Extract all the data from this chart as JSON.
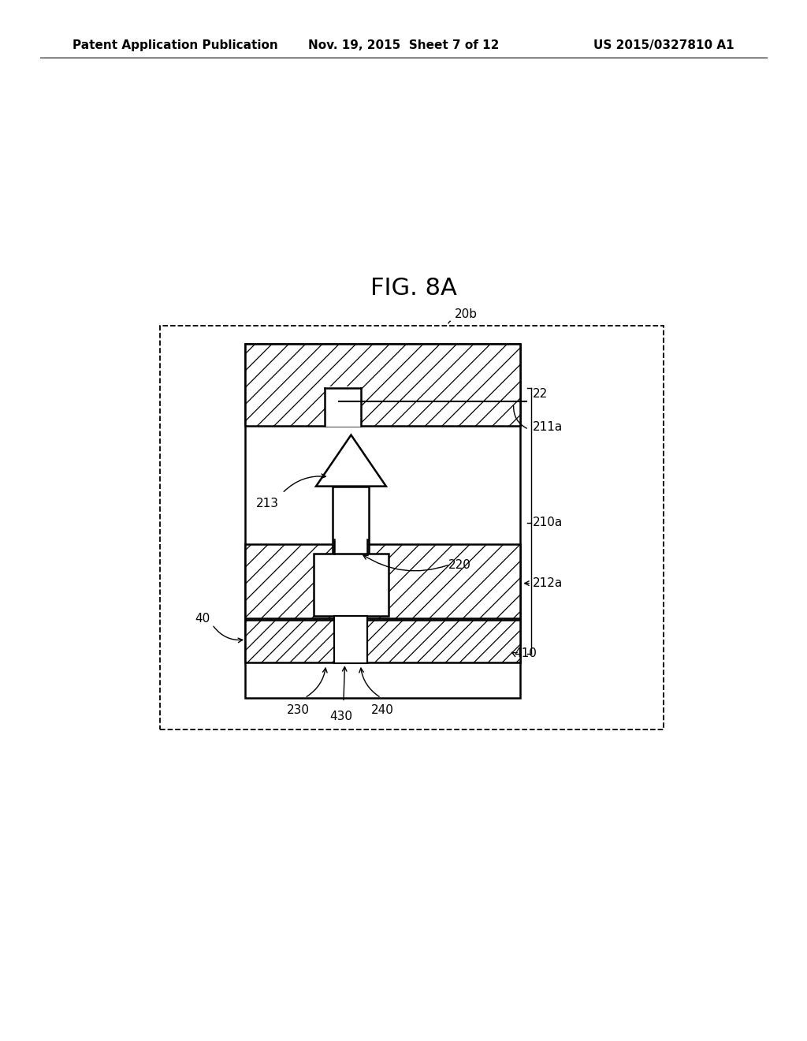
{
  "title": "FIG. 8A",
  "header_left": "Patent Application Publication",
  "header_center": "Nov. 19, 2015  Sheet 7 of 12",
  "header_right": "US 2015/0327810 A1",
  "bg_color": "#ffffff"
}
